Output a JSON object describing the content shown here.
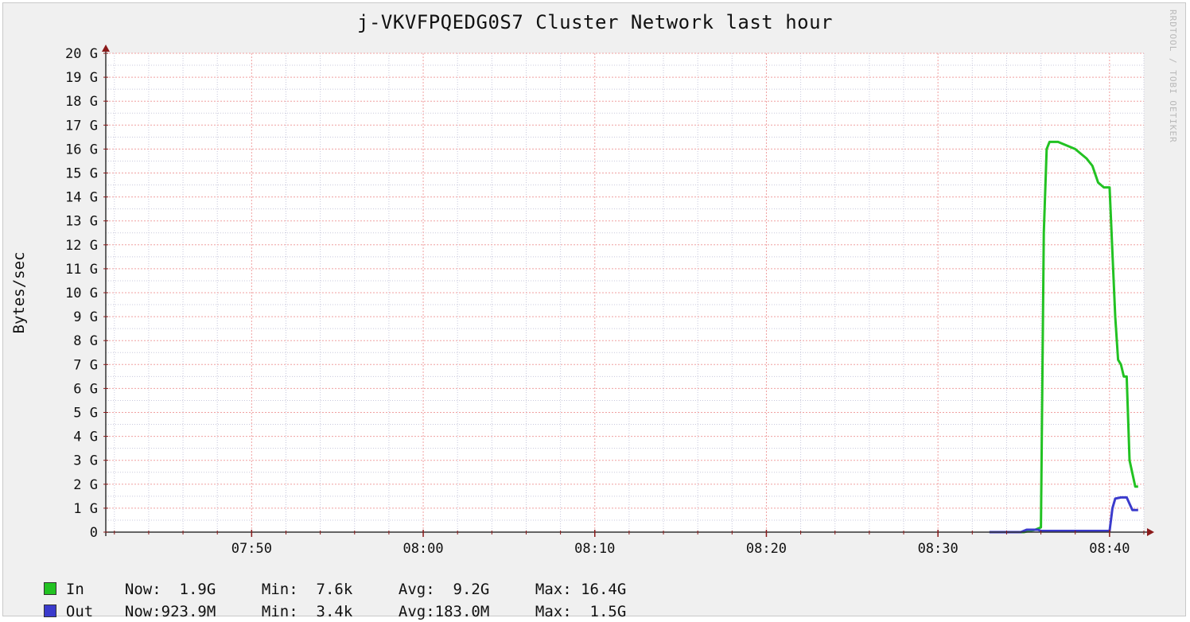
{
  "watermark": "RRDTOOL / TOBI OETIKER",
  "chart_data": {
    "type": "line",
    "title": "j-VKVFPQEDG0S7 Cluster Network last hour",
    "ylabel": "Bytes/sec",
    "xlabel": "",
    "ylim": [
      0,
      20
    ],
    "y_unit": "G",
    "y_ticks": [
      "0",
      "1 G",
      "2 G",
      "3 G",
      "4 G",
      "5 G",
      "6 G",
      "7 G",
      "8 G",
      "9 G",
      "10 G",
      "11 G",
      "12 G",
      "13 G",
      "14 G",
      "15 G",
      "16 G",
      "17 G",
      "18 G",
      "19 G",
      "20 G"
    ],
    "x_ticks": [
      {
        "t": "07:50",
        "label": "07:50"
      },
      {
        "t": "08:00",
        "label": "08:00"
      },
      {
        "t": "08:10",
        "label": "08:10"
      },
      {
        "t": "08:20",
        "label": "08:20"
      },
      {
        "t": "08:30",
        "label": "08:30"
      },
      {
        "t": "08:40",
        "label": "08:40"
      }
    ],
    "xlim": [
      "07:41:30",
      "08:42:00"
    ],
    "grid": true,
    "legend_position": "bottom",
    "series": [
      {
        "name": "In",
        "color": "#22c222",
        "x": [
          "08:33:00",
          "08:35:00",
          "08:35:40",
          "08:36:00",
          "08:36:10",
          "08:36:20",
          "08:36:30",
          "08:37:00",
          "08:37:20",
          "08:38:00",
          "08:38:20",
          "08:38:40",
          "08:39:00",
          "08:39:20",
          "08:39:40",
          "08:40:00",
          "08:40:20",
          "08:40:30",
          "08:40:40",
          "08:40:50",
          "08:41:00",
          "08:41:10",
          "08:41:30",
          "08:41:40"
        ],
        "values": [
          0.0,
          0.0,
          0.1,
          0.2,
          12.5,
          16.0,
          16.3,
          16.3,
          16.2,
          16.0,
          15.8,
          15.6,
          15.3,
          14.6,
          14.4,
          14.4,
          9.0,
          7.2,
          7.0,
          6.5,
          6.5,
          3.0,
          1.9,
          1.9
        ]
      },
      {
        "name": "Out",
        "color": "#3b3bcc",
        "x": [
          "08:33:00",
          "08:34:50",
          "08:35:10",
          "08:35:50",
          "08:36:00",
          "08:40:00",
          "08:40:10",
          "08:40:20",
          "08:40:40",
          "08:41:00",
          "08:41:20",
          "08:41:40"
        ],
        "values": [
          0.0,
          0.0,
          0.1,
          0.1,
          0.05,
          0.05,
          1.0,
          1.4,
          1.45,
          1.45,
          0.92,
          0.92
        ]
      }
    ],
    "legend": [
      {
        "name": "In",
        "color": "#22c222",
        "now": "Now:  1.9G",
        "min": "Min:  7.6k",
        "avg": "Avg:  9.2G",
        "max": "Max: 16.4G"
      },
      {
        "name": "Out",
        "color": "#3b3bcc",
        "now": "Now:923.9M",
        "min": "Min:  3.4k",
        "avg": "Avg:183.0M",
        "max": "Max:  1.5G"
      }
    ]
  }
}
